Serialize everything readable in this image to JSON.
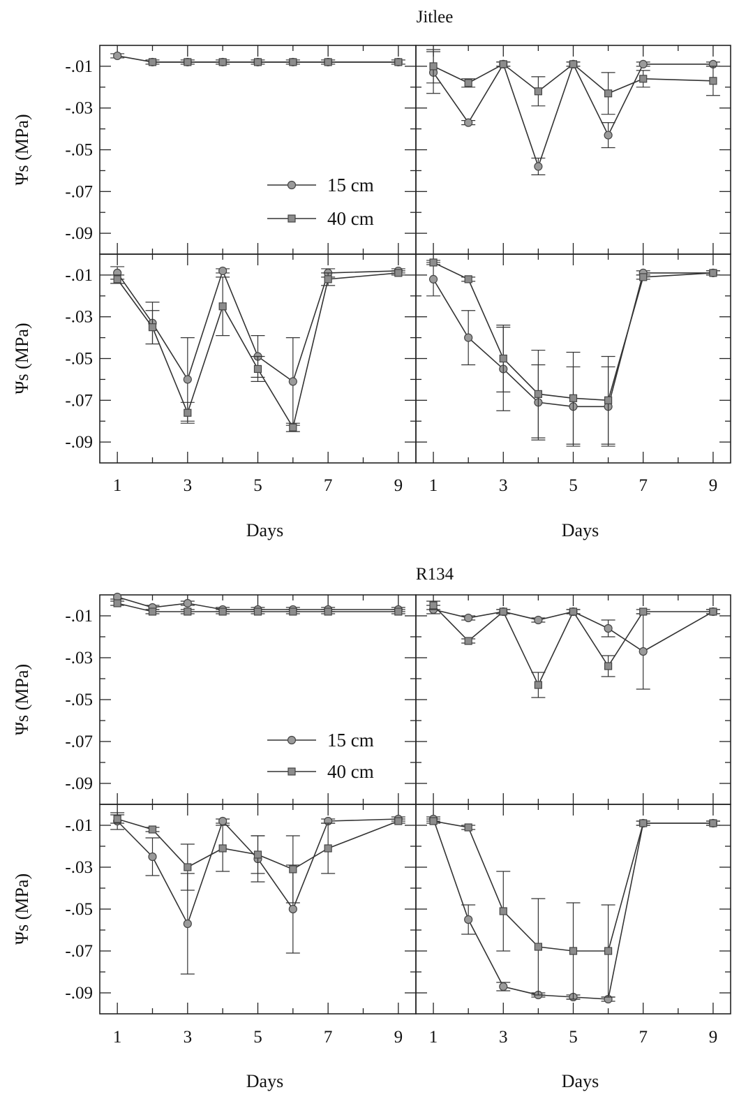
{
  "chart_data": [
    {
      "type": "line",
      "title": "Jitlee",
      "xlabel": "Days",
      "ylabel": "Ψs (MPa)",
      "y_ticks": [
        "-.01",
        "-.03",
        "-.05",
        "-.07",
        "-.09"
      ],
      "x_ticks": [
        "1",
        "3",
        "5",
        "7",
        "9"
      ],
      "ylim": [
        -0.1,
        0.0
      ],
      "xlim": [
        0.5,
        9.5
      ],
      "legend": {
        "position": "inside bottom-right of top-left panel",
        "entries": [
          "15 cm",
          "40 cm"
        ]
      },
      "panels": [
        {
          "series": [
            {
              "name": "15 cm",
              "marker": "circle",
              "x": [
                1,
                2,
                3,
                4,
                5,
                6,
                7,
                9
              ],
              "values": [
                -0.005,
                -0.008,
                -0.008,
                -0.008,
                -0.008,
                -0.008,
                -0.008,
                -0.008
              ],
              "err": [
                0.001,
                0.001,
                0.001,
                0.001,
                0.001,
                0.001,
                0.001,
                0.001
              ]
            },
            {
              "name": "40 cm",
              "marker": "square",
              "x": [
                2,
                3,
                4,
                5,
                6,
                7,
                9
              ],
              "values": [
                -0.008,
                -0.008,
                -0.008,
                -0.008,
                -0.008,
                -0.008,
                -0.008
              ],
              "err": [
                0.001,
                0.001,
                0.001,
                0.001,
                0.001,
                0.001,
                0.001
              ]
            }
          ]
        },
        {
          "series": [
            {
              "name": "15 cm",
              "marker": "circle",
              "x": [
                1,
                2,
                3,
                4,
                5,
                6,
                7,
                9
              ],
              "values": [
                -0.013,
                -0.037,
                -0.009,
                -0.058,
                -0.009,
                -0.043,
                -0.009,
                -0.009
              ],
              "err": [
                0.01,
                0.001,
                0.001,
                0.004,
                0.001,
                0.006,
                0.001,
                0.001
              ]
            },
            {
              "name": "40 cm",
              "marker": "square",
              "x": [
                1,
                2,
                3,
                4,
                5,
                6,
                7,
                9
              ],
              "values": [
                -0.01,
                -0.018,
                -0.009,
                -0.022,
                -0.009,
                -0.023,
                -0.016,
                -0.017
              ],
              "err": [
                0.008,
                0.002,
                0.001,
                0.007,
                0.001,
                0.01,
                0.004,
                0.007
              ]
            }
          ]
        },
        {
          "series": [
            {
              "name": "15 cm",
              "marker": "circle",
              "x": [
                1,
                2,
                3,
                4,
                5,
                6,
                7,
                9
              ],
              "values": [
                -0.009,
                -0.033,
                -0.06,
                -0.008,
                -0.049,
                -0.061,
                -0.009,
                -0.008
              ],
              "err": [
                0.003,
                0.01,
                0.02,
                0.001,
                0.01,
                0.021,
                0.002,
                0.001
              ]
            },
            {
              "name": "40 cm",
              "marker": "square",
              "x": [
                1,
                2,
                3,
                4,
                5,
                6,
                7,
                9
              ],
              "values": [
                -0.012,
                -0.035,
                -0.076,
                -0.025,
                -0.055,
                -0.083,
                -0.012,
                -0.009
              ],
              "err": [
                0.002,
                0.008,
                0.005,
                0.014,
                0.006,
                0.002,
                0.003,
                0.001
              ]
            }
          ]
        },
        {
          "series": [
            {
              "name": "15 cm",
              "marker": "circle",
              "x": [
                1,
                2,
                3,
                4,
                5,
                6,
                7,
                9
              ],
              "values": [
                -0.012,
                -0.04,
                -0.055,
                -0.071,
                -0.073,
                -0.073,
                -0.009,
                -0.009
              ],
              "err": [
                0.008,
                0.013,
                0.02,
                0.018,
                0.019,
                0.019,
                0.001,
                0.001
              ]
            },
            {
              "name": "40 cm",
              "marker": "square",
              "x": [
                1,
                2,
                3,
                4,
                5,
                6,
                7,
                9
              ],
              "values": [
                -0.004,
                -0.012,
                -0.05,
                -0.067,
                -0.069,
                -0.07,
                -0.011,
                -0.009
              ],
              "err": [
                0.001,
                0.001,
                0.016,
                0.021,
                0.022,
                0.021,
                0.001,
                0.001
              ]
            }
          ]
        }
      ]
    },
    {
      "type": "line",
      "title": "R134",
      "xlabel": "Days",
      "ylabel": "Ψs (MPa)",
      "y_ticks": [
        "-.01",
        "-.03",
        "-.05",
        "-.07",
        "-.09"
      ],
      "x_ticks": [
        "1",
        "3",
        "5",
        "7",
        "9"
      ],
      "ylim": [
        -0.1,
        0.0
      ],
      "xlim": [
        0.5,
        9.5
      ],
      "legend": {
        "position": "inside bottom-right of top-left panel",
        "entries": [
          "15 cm",
          "40 cm"
        ]
      },
      "panels": [
        {
          "series": [
            {
              "name": "15 cm",
              "marker": "circle",
              "x": [
                1,
                2,
                3,
                4,
                5,
                6,
                7,
                9
              ],
              "values": [
                -0.001,
                -0.006,
                -0.004,
                -0.007,
                -0.007,
                -0.007,
                -0.007,
                -0.007
              ],
              "err": [
                0.001,
                0.001,
                0.001,
                0.001,
                0.001,
                0.001,
                0.001,
                0.001
              ]
            },
            {
              "name": "40 cm",
              "marker": "square",
              "x": [
                1,
                2,
                3,
                4,
                5,
                6,
                7,
                9
              ],
              "values": [
                -0.004,
                -0.008,
                -0.008,
                -0.008,
                -0.008,
                -0.008,
                -0.008,
                -0.008
              ],
              "err": [
                0.001,
                0.001,
                0.001,
                0.001,
                0.001,
                0.001,
                0.001,
                0.001
              ]
            }
          ]
        },
        {
          "series": [
            {
              "name": "15 cm",
              "marker": "circle",
              "x": [
                1,
                2,
                3,
                4,
                5,
                6,
                7,
                9
              ],
              "values": [
                -0.007,
                -0.011,
                -0.008,
                -0.012,
                -0.008,
                -0.016,
                -0.027,
                -0.008
              ],
              "err": [
                0.002,
                0.001,
                0.001,
                0.001,
                0.001,
                0.004,
                0.018,
                0.001
              ]
            },
            {
              "name": "40 cm",
              "marker": "square",
              "x": [
                1,
                2,
                3,
                4,
                5,
                6,
                7,
                9
              ],
              "values": [
                -0.005,
                -0.022,
                -0.008,
                -0.043,
                -0.008,
                -0.034,
                -0.008,
                -0.008
              ],
              "err": [
                0.002,
                0.001,
                0.001,
                0.006,
                0.001,
                0.005,
                0.001,
                0.001
              ]
            }
          ]
        },
        {
          "series": [
            {
              "name": "15 cm",
              "marker": "circle",
              "x": [
                1,
                2,
                3,
                4,
                5,
                6,
                7,
                9
              ],
              "values": [
                -0.008,
                -0.025,
                -0.057,
                -0.008,
                -0.026,
                -0.05,
                -0.008,
                -0.007
              ],
              "err": [
                0.004,
                0.009,
                0.024,
                0.001,
                0.011,
                0.021,
                0.001,
                0.001
              ]
            },
            {
              "name": "40 cm",
              "marker": "square",
              "x": [
                1,
                2,
                3,
                4,
                5,
                6,
                7,
                9
              ],
              "values": [
                -0.007,
                -0.012,
                -0.03,
                -0.021,
                -0.024,
                -0.031,
                -0.021,
                -0.008
              ],
              "err": [
                0.002,
                0.001,
                0.011,
                0.011,
                0.009,
                0.016,
                0.012,
                0.001
              ]
            }
          ]
        },
        {
          "series": [
            {
              "name": "15 cm",
              "marker": "circle",
              "x": [
                1,
                2,
                3,
                4,
                5,
                6,
                7,
                9
              ],
              "values": [
                -0.007,
                -0.055,
                -0.087,
                -0.091,
                -0.092,
                -0.093,
                -0.009,
                -0.009
              ],
              "err": [
                0.001,
                0.007,
                0.002,
                0.001,
                0.001,
                0.001,
                0.001,
                0.001
              ]
            },
            {
              "name": "40 cm",
              "marker": "square",
              "x": [
                1,
                2,
                3,
                4,
                5,
                6,
                7,
                9
              ],
              "values": [
                -0.008,
                -0.011,
                -0.051,
                -0.068,
                -0.07,
                -0.07,
                -0.009,
                -0.009
              ],
              "err": [
                0.001,
                0.001,
                0.019,
                0.023,
                0.023,
                0.022,
                0.001,
                0.001
              ]
            }
          ]
        }
      ]
    }
  ]
}
